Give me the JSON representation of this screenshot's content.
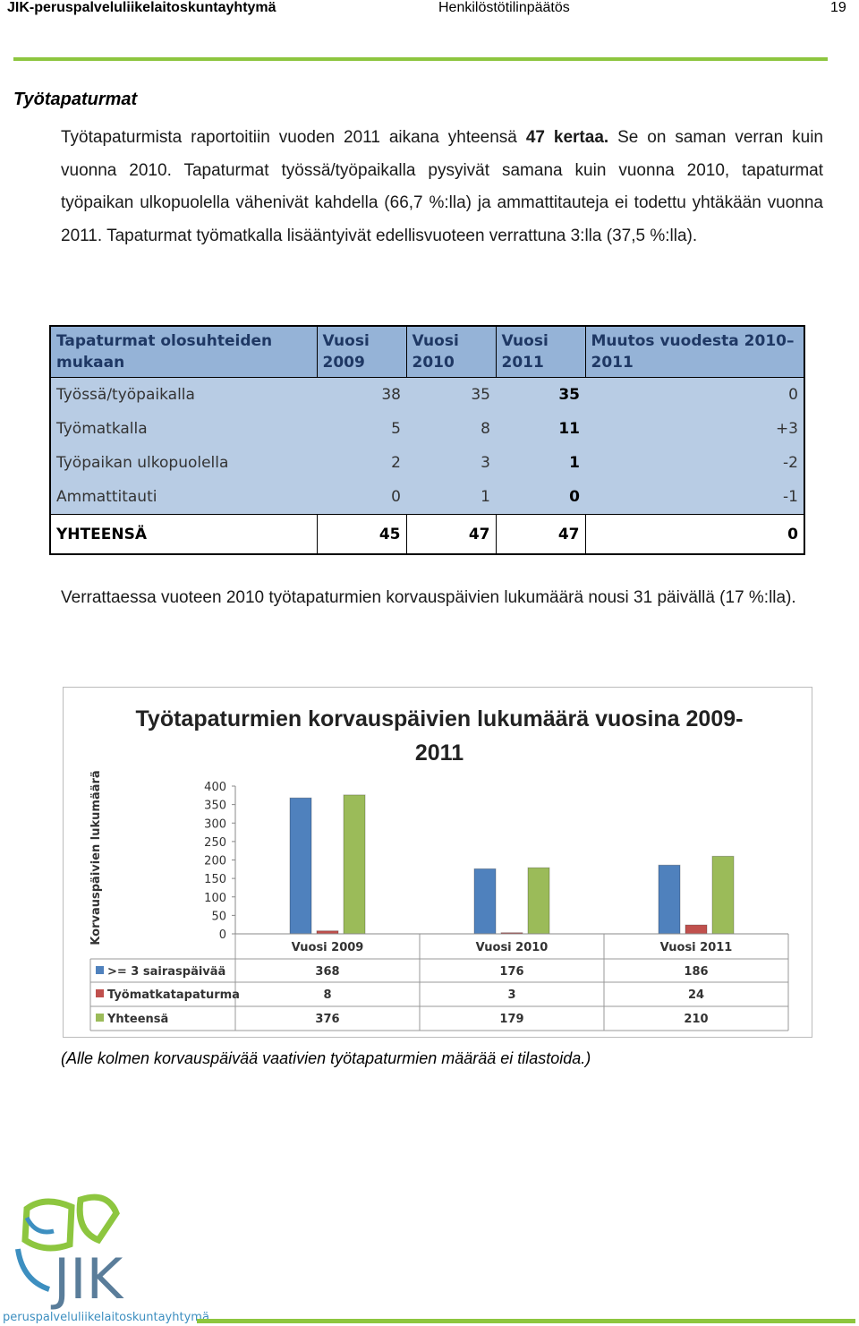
{
  "header": {
    "left": "JIK-peruspalveluliikelaitoskuntayhtymä",
    "center": "Henkilöstötilinpäätös",
    "page": "19"
  },
  "section_title": "Työtapaturmat",
  "paragraph1": {
    "before": "Työtapaturmista raportoitiin vuoden 2011 aikana yhteensä ",
    "bold": "47 kertaa.",
    "after": " Se on saman verran kuin vuonna 2010. Tapaturmat työssä/työpaikalla pysyivät samana kuin vuonna 2010, tapaturmat työpaikan ulkopuolella vähenivät kahdella (66,7 %:lla) ja ammattitauteja ei todettu yhtäkään vuonna 2011. Tapaturmat työmatkalla lisääntyivät edellisvuoteen verrattuna 3:lla (37,5 %:lla)."
  },
  "table": {
    "columns": [
      "Tapaturmat olosuhteiden mukaan",
      "Vuosi 2009",
      "Vuosi 2010",
      "Vuosi 2011",
      "Muutos vuodesta 2010–2011"
    ],
    "rows": [
      [
        "Työssä/työpaikalla",
        38,
        35,
        35,
        0
      ],
      [
        "Työmatkalla",
        5,
        8,
        11,
        "+3"
      ],
      [
        "Työpaikan ulkopuolella",
        2,
        3,
        1,
        -2
      ],
      [
        "Ammattitauti",
        0,
        1,
        0,
        -1
      ]
    ],
    "total": [
      "YHTEENSÄ",
      45,
      47,
      47,
      0
    ]
  },
  "paragraph2": "Verrattaessa vuoteen 2010 työtapaturmien korvauspäivien lukumäärä nousi 31 päivällä (17 %:lla).",
  "chart_data": {
    "type": "bar",
    "title": "Työtapaturmien korvauspäivien lukumäärä vuosina 2009-2011",
    "y_label": "Korvauspäivien lukumäärä",
    "categories": [
      "Vuosi 2009",
      "Vuosi 2010",
      "Vuosi 2011"
    ],
    "series": [
      {
        "name": ">= 3 sairaspäivää",
        "color": "#4f81bd",
        "values": [
          368,
          176,
          186
        ]
      },
      {
        "name": "Työmatkatapaturma",
        "color": "#c0504d",
        "values": [
          8,
          3,
          24
        ]
      },
      {
        "name": "Yhteensä",
        "color": "#9bbb59",
        "values": [
          376,
          179,
          210
        ]
      }
    ],
    "ylim": [
      0,
      400
    ],
    "yticks": [
      0,
      50,
      100,
      150,
      200,
      250,
      300,
      350,
      400
    ],
    "data_table": true
  },
  "caption": "(Alle kolmen korvauspäivää vaativien työtapaturmien määrää ei tilastoida.)",
  "footer": {
    "logo": "JIK",
    "organization": "peruspalveluliikelaitoskuntayhtymä"
  }
}
